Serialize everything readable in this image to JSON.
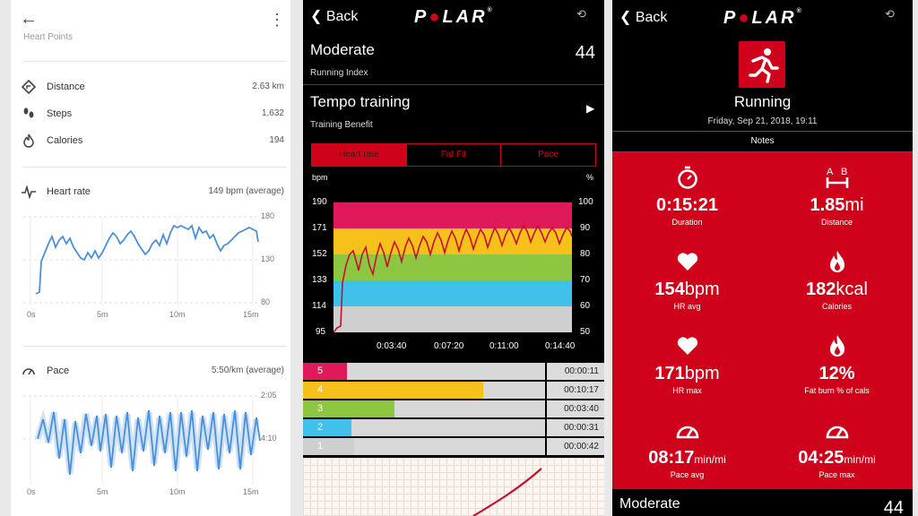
{
  "fit": {
    "back_icon": "back-arrow-icon",
    "menu_icon": "kebab-menu-icon",
    "cut_label": "Heart Points",
    "stats": [
      {
        "label": "Distance",
        "value": "2.63 km",
        "icon": "distance-icon"
      },
      {
        "label": "Steps",
        "value": "1,632",
        "icon": "steps-icon"
      },
      {
        "label": "Calories",
        "value": "194",
        "icon": "calories-icon"
      }
    ],
    "heart_rate": {
      "title": "Heart rate",
      "summary": "149 bpm (average)",
      "y_ticks": [
        "180",
        "130",
        "80"
      ],
      "x_ticks": [
        "0s",
        "5m",
        "10m",
        "15m"
      ]
    },
    "pace": {
      "title": "Pace",
      "summary": "5:50/km (average)",
      "y_ticks": [
        "2:05",
        "4:10"
      ],
      "x_ticks": [
        "0s",
        "5m",
        "10m",
        "15m"
      ]
    }
  },
  "polar_detail": {
    "back": "Back",
    "logo": "POLAR",
    "index": {
      "title": "Moderate",
      "sub": "Running Index",
      "value": "44"
    },
    "benefit": {
      "title": "Tempo training",
      "sub": "Training Benefit"
    },
    "tabs": [
      "Heart rate",
      "Fat Fit",
      "Pace"
    ],
    "active_tab": "Heart rate",
    "chart": {
      "left_unit": "bpm",
      "right_unit": "%",
      "left_ticks": [
        "190",
        "171",
        "152",
        "133",
        "114",
        "95"
      ],
      "right_ticks": [
        "100",
        "90",
        "80",
        "70",
        "60",
        "50"
      ],
      "x_ticks": [
        "0:03:40",
        "0:07:20",
        "0:11:00",
        "0:14:40"
      ],
      "zone_colors": [
        "#e0195a",
        "#f5c11a",
        "#8dc641",
        "#3fc1ec",
        "#cfcfcf"
      ]
    },
    "zones": [
      {
        "num": "5",
        "time": "00:00:11",
        "fraction": 0.013,
        "color": "#e0195a"
      },
      {
        "num": "4",
        "time": "00:10:17",
        "fraction": 0.69,
        "color": "#f5c11a"
      },
      {
        "num": "3",
        "time": "00:03:40",
        "fraction": 0.25,
        "color": "#8dc641"
      },
      {
        "num": "2",
        "time": "00:00:31",
        "fraction": 0.035,
        "color": "#3fc1ec"
      },
      {
        "num": "1",
        "time": "00:00:42",
        "fraction": 0.047,
        "color": "#cfcfcf"
      }
    ]
  },
  "polar_summary": {
    "back": "Back",
    "logo": "POLAR",
    "sport": "Running",
    "date": "Friday, Sep 21, 2018, 19:11",
    "notes": "Notes",
    "metrics": [
      {
        "value": "0:15:21",
        "unit": "",
        "label": "Duration",
        "icon": "stopwatch-icon"
      },
      {
        "value": "1.85",
        "unit": "mi",
        "label": "Distance",
        "icon": "distance-ab-icon"
      },
      {
        "value": "154",
        "unit": "bpm",
        "label": "HR avg",
        "icon": "heart-icon"
      },
      {
        "value": "182",
        "unit": "kcal",
        "label": "Calories",
        "icon": "flame-icon"
      },
      {
        "value": "171",
        "unit": "bpm",
        "label": "HR max",
        "icon": "heart-icon"
      },
      {
        "value": "12%",
        "unit": "",
        "label": "Fat burn % of cals",
        "icon": "flame-icon"
      },
      {
        "value": "08:17",
        "unit": "min/mi",
        "label": "Pace avg",
        "icon": "speedometer-icon"
      },
      {
        "value": "04:25",
        "unit": "min/mi",
        "label": "Pace max",
        "icon": "speedometer-icon"
      }
    ],
    "footer": {
      "title": "Moderate",
      "value": "44"
    }
  }
}
